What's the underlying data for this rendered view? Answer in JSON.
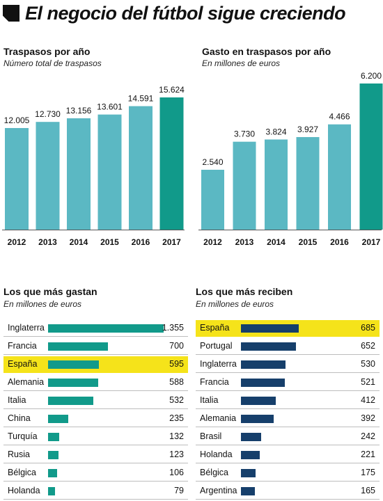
{
  "headline": "El negocio del fútbol sigue creciendo",
  "colors": {
    "bar": "#5bb8c3",
    "bar_highlight": "#119a8a",
    "navy_bar": "#163f6b",
    "highlight": "#f5e31a"
  },
  "chart_data": [
    {
      "type": "bar",
      "title": "Traspasos por año",
      "subtitle": "Número total de traspasos",
      "categories": [
        "2012",
        "2013",
        "2014",
        "2015",
        "2016",
        "2017"
      ],
      "values": [
        12005,
        12730,
        13156,
        13601,
        14591,
        15624
      ],
      "value_labels": [
        "12.005",
        "12.730",
        "13.156",
        "13.601",
        "14.591",
        "15.624"
      ],
      "highlight_index": 5,
      "ylim": [
        0,
        15624
      ]
    },
    {
      "type": "bar",
      "title": "Gasto en traspasos por año",
      "subtitle": "En millones de euros",
      "categories": [
        "2012",
        "2013",
        "2014",
        "2015",
        "2016",
        "2017"
      ],
      "values": [
        2540,
        3730,
        3824,
        3927,
        4466,
        6200
      ],
      "value_labels": [
        "2.540",
        "3.730",
        "3.824",
        "3.927",
        "4.466",
        "6.200"
      ],
      "highlight_index": 5,
      "ylim": [
        0,
        6200
      ]
    },
    {
      "type": "bar",
      "orientation": "horizontal",
      "title": "Los que más gastan",
      "subtitle": "En millones de euros",
      "categories": [
        "Inglaterra",
        "Francia",
        "España",
        "Alemania",
        "Italia",
        "China",
        "Turquía",
        "Rusia",
        "Bélgica",
        "Holanda"
      ],
      "values": [
        1355,
        700,
        595,
        588,
        532,
        235,
        132,
        123,
        106,
        79
      ],
      "value_labels": [
        "1.355",
        "700",
        "595",
        "588",
        "532",
        "235",
        "132",
        "123",
        "106",
        "79"
      ],
      "highlight_index": 2,
      "max": 1355
    },
    {
      "type": "bar",
      "orientation": "horizontal",
      "title": "Los que más reciben",
      "subtitle": "En millones de euros",
      "categories": [
        "España",
        "Portugal",
        "Inglaterra",
        "Francia",
        "Italia",
        "Alemania",
        "Brasil",
        "Holanda",
        "Bélgica",
        "Argentina"
      ],
      "values": [
        685,
        652,
        530,
        521,
        412,
        392,
        242,
        221,
        175,
        165
      ],
      "value_labels": [
        "685",
        "652",
        "530",
        "521",
        "412",
        "392",
        "242",
        "221",
        "175",
        "165"
      ],
      "highlight_index": 0,
      "max": 685
    }
  ]
}
